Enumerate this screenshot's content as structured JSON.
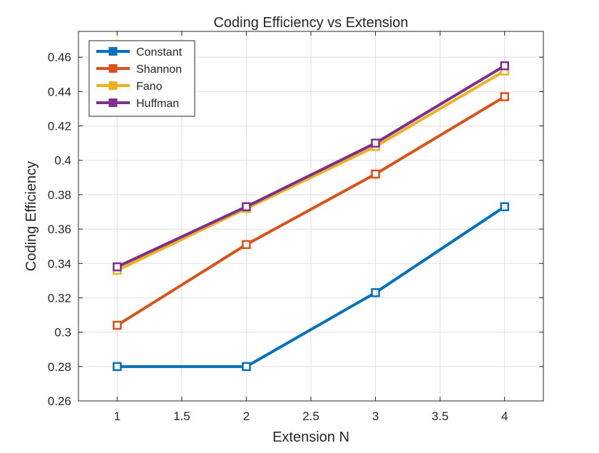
{
  "chart_data": {
    "type": "line",
    "title": "Coding Efficiency vs Extension",
    "xlabel": "Extension N",
    "ylabel": "Coding Efficiency",
    "xlim": [
      0.7,
      4.3
    ],
    "ylim": [
      0.26,
      0.475
    ],
    "xticks": [
      1,
      1.5,
      2,
      2.5,
      3,
      3.5,
      4
    ],
    "yticks": [
      0.26,
      0.28,
      0.3,
      0.32,
      0.34,
      0.36,
      0.38,
      0.4,
      0.42,
      0.44,
      0.46
    ],
    "xtick_labels": [
      "1",
      "1.5",
      "2",
      "2.5",
      "3",
      "3.5",
      "4"
    ],
    "ytick_labels": [
      "0.26",
      "0.28",
      "0.3",
      "0.32",
      "0.34",
      "0.36",
      "0.38",
      "0.4",
      "0.42",
      "0.44",
      "0.46"
    ],
    "grid": true,
    "legend_position": "top-left",
    "marker": "square",
    "x": [
      1,
      2,
      3,
      4
    ],
    "series": [
      {
        "name": "Constant",
        "color": "#0072BD",
        "values": [
          0.28,
          0.28,
          0.323,
          0.373
        ]
      },
      {
        "name": "Shannon",
        "color": "#D95319",
        "values": [
          0.304,
          0.351,
          0.392,
          0.437
        ]
      },
      {
        "name": "Fano",
        "color": "#EDB120",
        "values": [
          0.336,
          0.372,
          0.408,
          0.452
        ]
      },
      {
        "name": "Huffman",
        "color": "#7E2F8E",
        "values": [
          0.338,
          0.373,
          0.41,
          0.455
        ]
      }
    ]
  }
}
